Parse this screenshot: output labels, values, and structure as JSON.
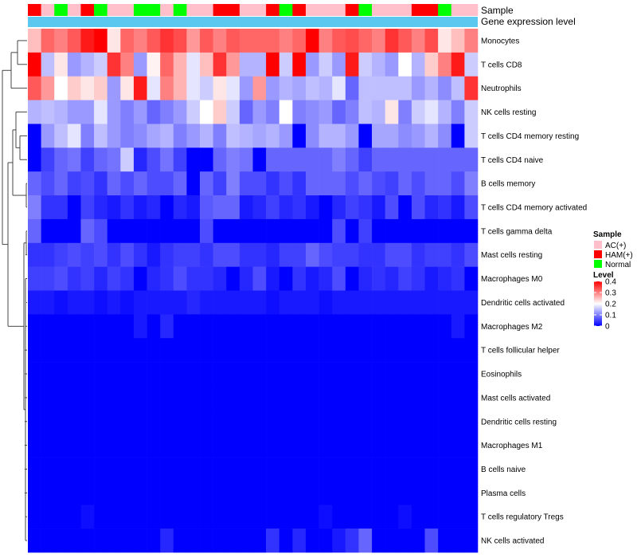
{
  "chart_data": {
    "type": "heatmap",
    "annotation_labels": [
      "Sample",
      "Gene expression level"
    ],
    "rows": [
      "Monocytes",
      "T cells CD8",
      "Neutrophils",
      "NK cells resting",
      "T cells CD4 memory resting",
      "T cells CD4 naive",
      "B cells memory",
      "T cells CD4 memory activated",
      "T cells gamma delta",
      "Mast cells resting",
      "Macrophages M0",
      "Dendritic cells activated",
      "Macrophages M2",
      "T cells follicular helper",
      "Eosinophils",
      "Mast cells activated",
      "Dendritic cells resting",
      "Macrophages M1",
      "B cells naive",
      "Plasma cells",
      "T cells regulatory  Tregs",
      "NK cells activated"
    ],
    "sample_groups": [
      "HAM(+)",
      "AC(+)",
      "Normal",
      "AC(+)",
      "HAM(+)",
      "Normal",
      "AC(+)",
      "AC(+)",
      "Normal",
      "Normal",
      "AC(+)",
      "Normal",
      "AC(+)",
      "AC(+)",
      "HAM(+)",
      "HAM(+)",
      "AC(+)",
      "AC(+)",
      "HAM(+)",
      "Normal",
      "HAM(+)",
      "AC(+)",
      "AC(+)",
      "AC(+)",
      "HAM(+)",
      "Normal",
      "AC(+)",
      "AC(+)",
      "AC(+)",
      "HAM(+)",
      "HAM(+)",
      "Normal",
      "AC(+)",
      "AC(+)"
    ],
    "values": [
      [
        0.25,
        0.32,
        0.3,
        0.33,
        0.38,
        0.4,
        0.22,
        0.32,
        0.3,
        0.33,
        0.36,
        0.34,
        0.28,
        0.33,
        0.3,
        0.33,
        0.32,
        0.32,
        0.32,
        0.3,
        0.32,
        0.4,
        0.3,
        0.33,
        0.34,
        0.32,
        0.3,
        0.36,
        0.33,
        0.3,
        0.34,
        0.22,
        0.25,
        0.3
      ],
      [
        0.4,
        0.15,
        0.22,
        0.12,
        0.14,
        0.16,
        0.36,
        0.3,
        0.12,
        0.21,
        0.32,
        0.26,
        0.18,
        0.25,
        0.36,
        0.28,
        0.14,
        0.14,
        0.4,
        0.16,
        0.4,
        0.12,
        0.16,
        0.12,
        0.38,
        0.16,
        0.14,
        0.12,
        0.2,
        0.14,
        0.24,
        0.3,
        0.38,
        0.16
      ],
      [
        0.33,
        0.28,
        0.2,
        0.24,
        0.22,
        0.24,
        0.12,
        0.22,
        0.38,
        0.18,
        0.3,
        0.26,
        0.18,
        0.16,
        0.22,
        0.18,
        0.12,
        0.28,
        0.12,
        0.14,
        0.13,
        0.15,
        0.14,
        0.18,
        0.08,
        0.15,
        0.15,
        0.15,
        0.15,
        0.12,
        0.14,
        0.11,
        0.15,
        0.36
      ],
      [
        0.14,
        0.15,
        0.14,
        0.12,
        0.12,
        0.18,
        0.12,
        0.1,
        0.12,
        0.08,
        0.1,
        0.12,
        0.16,
        0.2,
        0.24,
        0.16,
        0.08,
        0.12,
        0.1,
        0.2,
        0.1,
        0.11,
        0.12,
        0.08,
        0.1,
        0.15,
        0.14,
        0.22,
        0.1,
        0.16,
        0.18,
        0.14,
        0.1,
        0.16
      ],
      [
        0.0,
        0.12,
        0.15,
        0.18,
        0.1,
        0.15,
        0.12,
        0.1,
        0.11,
        0.13,
        0.14,
        0.1,
        0.12,
        0.14,
        0.1,
        0.15,
        0.14,
        0.13,
        0.14,
        0.12,
        0.0,
        0.11,
        0.14,
        0.14,
        0.12,
        0.0,
        0.13,
        0.13,
        0.11,
        0.12,
        0.14,
        0.11,
        0.0,
        0.16
      ],
      [
        0.0,
        0.05,
        0.08,
        0.09,
        0.05,
        0.08,
        0.09,
        0.16,
        0.03,
        0.06,
        0.09,
        0.05,
        0.0,
        0.0,
        0.08,
        0.1,
        0.09,
        0.0,
        0.08,
        0.08,
        0.08,
        0.08,
        0.08,
        0.1,
        0.08,
        0.05,
        0.08,
        0.08,
        0.08,
        0.08,
        0.08,
        0.08,
        0.08,
        0.08
      ],
      [
        0.08,
        0.06,
        0.08,
        0.05,
        0.06,
        0.04,
        0.08,
        0.06,
        0.08,
        0.06,
        0.06,
        0.08,
        0.0,
        0.08,
        0.05,
        0.1,
        0.06,
        0.06,
        0.04,
        0.06,
        0.04,
        0.08,
        0.08,
        0.08,
        0.06,
        0.08,
        0.06,
        0.05,
        0.08,
        0.06,
        0.08,
        0.08,
        0.06,
        0.1
      ],
      [
        0.1,
        0.04,
        0.04,
        0.0,
        0.05,
        0.03,
        0.02,
        0.04,
        0.02,
        0.03,
        0.0,
        0.03,
        0.02,
        0.07,
        0.08,
        0.08,
        0.02,
        0.03,
        0.05,
        0.03,
        0.04,
        0.02,
        0.0,
        0.03,
        0.05,
        0.04,
        0.02,
        0.06,
        0.0,
        0.06,
        0.03,
        0.04,
        0.02,
        0.06
      ],
      [
        0.08,
        0.0,
        0.0,
        0.0,
        0.08,
        0.06,
        0.0,
        0.0,
        0.0,
        0.0,
        0.0,
        0.0,
        0.0,
        0.06,
        0.0,
        0.0,
        0.0,
        0.0,
        0.0,
        0.0,
        0.0,
        0.0,
        0.0,
        0.06,
        0.0,
        0.05,
        0.0,
        0.0,
        0.0,
        0.0,
        0.0,
        0.0,
        0.0,
        0.0
      ],
      [
        0.04,
        0.04,
        0.05,
        0.06,
        0.05,
        0.06,
        0.04,
        0.06,
        0.04,
        0.02,
        0.04,
        0.05,
        0.05,
        0.04,
        0.06,
        0.06,
        0.04,
        0.04,
        0.03,
        0.05,
        0.05,
        0.08,
        0.06,
        0.05,
        0.05,
        0.04,
        0.04,
        0.06,
        0.06,
        0.04,
        0.05,
        0.05,
        0.04,
        0.06
      ],
      [
        0.05,
        0.05,
        0.06,
        0.04,
        0.05,
        0.03,
        0.05,
        0.04,
        0.0,
        0.03,
        0.04,
        0.06,
        0.04,
        0.04,
        0.03,
        0.0,
        0.03,
        0.06,
        0.02,
        0.0,
        0.04,
        0.02,
        0.03,
        0.06,
        0.0,
        0.03,
        0.04,
        0.03,
        0.05,
        0.04,
        0.02,
        0.03,
        0.04,
        0.0
      ],
      [
        0.02,
        0.02,
        0.01,
        0.02,
        0.02,
        0.01,
        0.02,
        0.01,
        0.02,
        0.02,
        0.02,
        0.02,
        0.03,
        0.02,
        0.02,
        0.02,
        0.02,
        0.02,
        0.01,
        0.02,
        0.02,
        0.02,
        0.01,
        0.02,
        0.02,
        0.02,
        0.02,
        0.02,
        0.02,
        0.02,
        0.02,
        0.02,
        0.02,
        0.02
      ],
      [
        0.0,
        0.0,
        0.0,
        0.0,
        0.0,
        0.0,
        0.0,
        0.0,
        0.02,
        0.0,
        0.03,
        0.0,
        0.0,
        0.0,
        0.0,
        0.0,
        0.0,
        0.0,
        0.0,
        0.0,
        0.0,
        0.0,
        0.0,
        0.0,
        0.0,
        0.0,
        0.0,
        0.0,
        0.0,
        0.0,
        0.0,
        0.0,
        0.02,
        0.0
      ],
      [
        0.0,
        0.0,
        0.0,
        0.0,
        0.0,
        0.0,
        0.0,
        0.0,
        0.0,
        0.0,
        0.0,
        0.0,
        0.0,
        0.0,
        0.0,
        0.0,
        0.0,
        0.0,
        0.0,
        0.0,
        0.0,
        0.0,
        0.0,
        0.0,
        0.0,
        0.0,
        0.0,
        0.0,
        0.0,
        0.0,
        0.0,
        0.0,
        0.0,
        0.0
      ],
      [
        0.0,
        0.0,
        0.0,
        0.0,
        0.0,
        0.0,
        0.0,
        0.0,
        0.0,
        0.0,
        0.0,
        0.0,
        0.0,
        0.0,
        0.0,
        0.0,
        0.0,
        0.0,
        0.0,
        0.0,
        0.0,
        0.0,
        0.0,
        0.0,
        0.0,
        0.0,
        0.0,
        0.0,
        0.0,
        0.0,
        0.0,
        0.0,
        0.0,
        0.0
      ],
      [
        0.0,
        0.0,
        0.0,
        0.0,
        0.0,
        0.0,
        0.0,
        0.0,
        0.0,
        0.0,
        0.0,
        0.0,
        0.0,
        0.0,
        0.0,
        0.0,
        0.0,
        0.0,
        0.0,
        0.0,
        0.0,
        0.0,
        0.0,
        0.0,
        0.0,
        0.0,
        0.0,
        0.0,
        0.0,
        0.0,
        0.0,
        0.0,
        0.0,
        0.0
      ],
      [
        0.0,
        0.0,
        0.0,
        0.0,
        0.0,
        0.0,
        0.0,
        0.0,
        0.0,
        0.0,
        0.0,
        0.0,
        0.0,
        0.0,
        0.0,
        0.0,
        0.0,
        0.0,
        0.0,
        0.0,
        0.0,
        0.0,
        0.0,
        0.0,
        0.0,
        0.0,
        0.0,
        0.0,
        0.0,
        0.0,
        0.0,
        0.0,
        0.0,
        0.0
      ],
      [
        0.0,
        0.0,
        0.0,
        0.0,
        0.0,
        0.0,
        0.0,
        0.0,
        0.0,
        0.0,
        0.0,
        0.0,
        0.0,
        0.0,
        0.0,
        0.0,
        0.0,
        0.0,
        0.0,
        0.0,
        0.0,
        0.0,
        0.0,
        0.0,
        0.0,
        0.0,
        0.0,
        0.0,
        0.0,
        0.0,
        0.0,
        0.0,
        0.0,
        0.0
      ],
      [
        0.0,
        0.0,
        0.0,
        0.0,
        0.0,
        0.0,
        0.0,
        0.0,
        0.0,
        0.0,
        0.0,
        0.0,
        0.0,
        0.0,
        0.0,
        0.0,
        0.0,
        0.0,
        0.0,
        0.0,
        0.0,
        0.0,
        0.0,
        0.0,
        0.0,
        0.0,
        0.0,
        0.0,
        0.0,
        0.0,
        0.0,
        0.0,
        0.0,
        0.0
      ],
      [
        0.0,
        0.0,
        0.0,
        0.0,
        0.0,
        0.0,
        0.0,
        0.0,
        0.0,
        0.0,
        0.0,
        0.0,
        0.0,
        0.0,
        0.0,
        0.0,
        0.0,
        0.0,
        0.0,
        0.0,
        0.0,
        0.0,
        0.0,
        0.0,
        0.0,
        0.0,
        0.0,
        0.0,
        0.0,
        0.0,
        0.0,
        0.0,
        0.0,
        0.0
      ],
      [
        0.0,
        0.0,
        0.0,
        0.0,
        0.01,
        0.0,
        0.0,
        0.0,
        0.0,
        0.0,
        0.0,
        0.0,
        0.0,
        0.0,
        0.0,
        0.0,
        0.0,
        0.0,
        0.0,
        0.0,
        0.0,
        0.0,
        0.01,
        0.0,
        0.0,
        0.0,
        0.0,
        0.0,
        0.01,
        0.0,
        0.0,
        0.0,
        0.0,
        0.0
      ],
      [
        0.0,
        0.0,
        0.0,
        0.0,
        0.0,
        0.0,
        0.0,
        0.0,
        0.0,
        0.0,
        0.03,
        0.0,
        0.0,
        0.0,
        0.0,
        0.0,
        0.0,
        0.0,
        0.04,
        0.0,
        0.03,
        0.0,
        0.0,
        0.02,
        0.04,
        0.08,
        0.0,
        0.0,
        0.0,
        0.0,
        0.06,
        0.0,
        0.0,
        0.0
      ]
    ],
    "color_scale": {
      "min": 0,
      "mid": 0.2,
      "max": 0.4,
      "low_color": "#0000ff",
      "mid_color": "#ffffff",
      "high_color": "#ff0000"
    },
    "gene_expression_color": "#5bc8f0",
    "legend": {
      "sample_title": "Sample",
      "sample_entries": [
        {
          "label": "AC(+)",
          "color": "#ffc0cb"
        },
        {
          "label": "HAM(+)",
          "color": "#ff0000"
        },
        {
          "label": "Normal",
          "color": "#00ff00"
        }
      ],
      "level_title": "Level",
      "level_ticks": [
        {
          "label": "0.4",
          "value": 0.4
        },
        {
          "label": "0.3",
          "value": 0.3
        },
        {
          "label": "0.2",
          "value": 0.2
        },
        {
          "label": "0.1",
          "value": 0.1
        },
        {
          "label": "0",
          "value": 0
        }
      ],
      "placement": "right"
    }
  }
}
